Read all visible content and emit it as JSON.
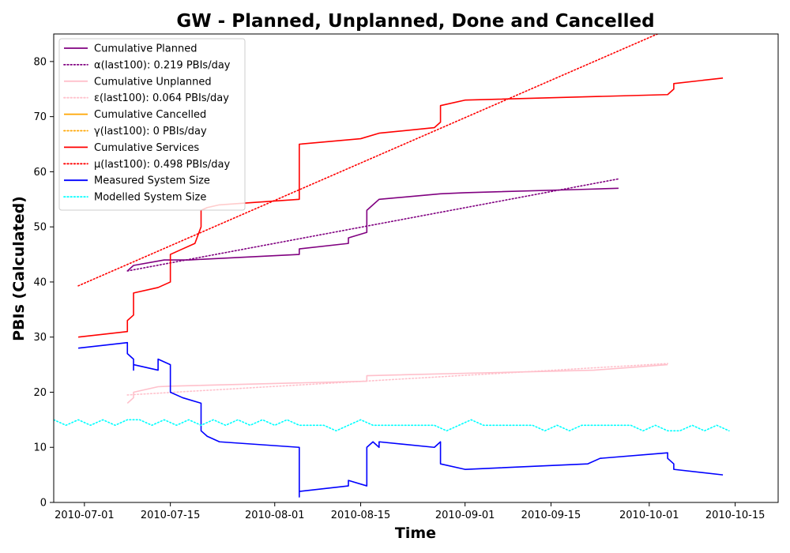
{
  "chart_data": {
    "type": "line",
    "title": "GW - Planned, Unplanned, Done  and Cancelled",
    "xlabel": "Time",
    "ylabel": "PBIs (Calculated)",
    "xlim": [
      "2010-06-26",
      "2010-10-22"
    ],
    "ylim": [
      0,
      85
    ],
    "x_ticks": [
      "2010-07-01",
      "2010-07-15",
      "2010-08-01",
      "2010-08-15",
      "2010-09-01",
      "2010-09-15",
      "2010-10-01",
      "2010-10-15"
    ],
    "y_ticks": [
      0,
      10,
      20,
      30,
      40,
      50,
      60,
      70,
      80
    ],
    "grid": false,
    "legend_position": "top-left",
    "series": [
      {
        "name": "Cumulative Planned",
        "color": "#800080",
        "style": "solid",
        "x": [
          "2010-07-08",
          "2010-07-09",
          "2010-07-14",
          "2010-07-18",
          "2010-08-05",
          "2010-08-05",
          "2010-08-13",
          "2010-08-13",
          "2010-08-16",
          "2010-08-16",
          "2010-08-17",
          "2010-08-18",
          "2010-08-28",
          "2010-09-01",
          "2010-09-20",
          "2010-09-26"
        ],
        "y": [
          42,
          43,
          44,
          44,
          45,
          46,
          47,
          48,
          49,
          53,
          54,
          55,
          56,
          56.2,
          56.8,
          57
        ]
      },
      {
        "name": "α(last100): 0.219 PBIs/day",
        "color": "#800080",
        "style": "dotted",
        "x": [
          "2010-07-08",
          "2010-09-26"
        ],
        "y": [
          42,
          58.7
        ]
      },
      {
        "name": "Cumulative Unplanned",
        "color": "#ffc0cb",
        "style": "solid",
        "x": [
          "2010-07-08",
          "2010-07-09",
          "2010-07-09",
          "2010-07-13",
          "2010-07-15",
          "2010-08-16",
          "2010-08-16",
          "2010-09-22",
          "2010-10-04"
        ],
        "y": [
          18,
          19,
          20,
          21,
          21.1,
          22,
          23,
          24,
          25
        ]
      },
      {
        "name": "ε(last100): 0.064 PBIs/day",
        "color": "#ffc0cb",
        "style": "dotted",
        "x": [
          "2010-07-08",
          "2010-10-04"
        ],
        "y": [
          19.5,
          25.2
        ]
      },
      {
        "name": "Cumulative Cancelled",
        "color": "#ffa500",
        "style": "solid",
        "x": [],
        "y": []
      },
      {
        "name": "γ(last100): 0 PBIs/day",
        "color": "#ffa500",
        "style": "dotted",
        "x": [],
        "y": []
      },
      {
        "name": "Cumulative Services",
        "color": "#ff0000",
        "style": "solid",
        "x": [
          "2010-06-30",
          "2010-06-30",
          "2010-07-08",
          "2010-07-08",
          "2010-07-09",
          "2010-07-09",
          "2010-07-09",
          "2010-07-13",
          "2010-07-15",
          "2010-07-15",
          "2010-07-17",
          "2010-07-19",
          "2010-07-20",
          "2010-07-20",
          "2010-07-20",
          "2010-07-21",
          "2010-07-23",
          "2010-08-05",
          "2010-08-05",
          "2010-08-15",
          "2010-08-18",
          "2010-08-27",
          "2010-08-28",
          "2010-08-28",
          "2010-09-01",
          "2010-10-04",
          "2010-10-05",
          "2010-10-05",
          "2010-10-13"
        ],
        "y": [
          30,
          30,
          31,
          33,
          34,
          36,
          38,
          39,
          40,
          45,
          46,
          47,
          50,
          52,
          53,
          53.5,
          54,
          55,
          65,
          66,
          67,
          68,
          69,
          72,
          73,
          74,
          75,
          76,
          77
        ]
      },
      {
        "name": "μ(last100): 0.498 PBIs/day",
        "color": "#ff0000",
        "style": "dotted",
        "x": [
          "2010-06-30",
          "2010-10-04"
        ],
        "y": [
          39.3,
          85.8
        ]
      },
      {
        "name": "Measured System Size",
        "color": "#0000ff",
        "style": "solid",
        "x": [
          "2010-06-30",
          "2010-06-30",
          "2010-07-08",
          "2010-07-08",
          "2010-07-09",
          "2010-07-09",
          "2010-07-09",
          "2010-07-09",
          "2010-07-13",
          "2010-07-13",
          "2010-07-15",
          "2010-07-15",
          "2010-07-17",
          "2010-07-20",
          "2010-07-20",
          "2010-07-21",
          "2010-07-23",
          "2010-08-05",
          "2010-08-05",
          "2010-08-05",
          "2010-08-13",
          "2010-08-13",
          "2010-08-16",
          "2010-08-16",
          "2010-08-17",
          "2010-08-18",
          "2010-08-18",
          "2010-08-27",
          "2010-08-28",
          "2010-08-28",
          "2010-09-01",
          "2010-09-21",
          "2010-09-23",
          "2010-10-04",
          "2010-10-04",
          "2010-10-05",
          "2010-10-05",
          "2010-10-13"
        ],
        "y": [
          28,
          28,
          29,
          27,
          26,
          24,
          25,
          25,
          24,
          26,
          25,
          20,
          19,
          18,
          13,
          12,
          11,
          10,
          1,
          2,
          3,
          4,
          3,
          10,
          11,
          10,
          11,
          10,
          11,
          7,
          6,
          7,
          8,
          9,
          8,
          7,
          6,
          5
        ]
      },
      {
        "name": "Modelled System Size",
        "color": "#00ffff",
        "style": "dotted",
        "x": [
          "2010-06-26",
          "2010-06-28",
          "2010-06-30",
          "2010-07-02",
          "2010-07-04",
          "2010-07-06",
          "2010-07-08",
          "2010-07-10",
          "2010-07-12",
          "2010-07-14",
          "2010-07-16",
          "2010-07-18",
          "2010-07-20",
          "2010-07-22",
          "2010-07-24",
          "2010-07-26",
          "2010-07-28",
          "2010-07-30",
          "2010-08-01",
          "2010-08-03",
          "2010-08-05",
          "2010-08-07",
          "2010-08-09",
          "2010-08-11",
          "2010-08-13",
          "2010-08-15",
          "2010-08-17",
          "2010-08-19",
          "2010-08-21",
          "2010-08-23",
          "2010-08-25",
          "2010-08-27",
          "2010-08-29",
          "2010-08-31",
          "2010-09-02",
          "2010-09-04",
          "2010-09-06",
          "2010-09-08",
          "2010-09-10",
          "2010-09-12",
          "2010-09-14",
          "2010-09-16",
          "2010-09-18",
          "2010-09-20",
          "2010-09-22",
          "2010-09-24",
          "2010-09-26",
          "2010-09-28",
          "2010-09-30",
          "2010-10-02",
          "2010-10-04",
          "2010-10-06",
          "2010-10-08",
          "2010-10-10",
          "2010-10-12",
          "2010-10-14"
        ],
        "y": [
          15,
          14,
          15,
          14,
          15,
          14,
          15,
          15,
          14,
          15,
          14,
          15,
          14,
          15,
          14,
          15,
          14,
          15,
          14,
          15,
          14,
          14,
          14,
          13,
          14,
          15,
          14,
          14,
          14,
          14,
          14,
          14,
          13,
          14,
          15,
          14,
          14,
          14,
          14,
          14,
          13,
          14,
          13,
          14,
          14,
          14,
          14,
          14,
          13,
          14,
          13,
          13,
          14,
          13,
          14,
          13
        ]
      }
    ]
  }
}
